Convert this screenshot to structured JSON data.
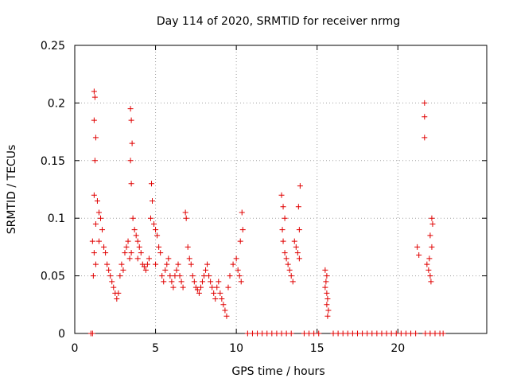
{
  "chart_data": {
    "type": "scatter",
    "title": "Day 114 of 2020, SRMTID for receiver nrmg",
    "xlabel": "GPS time / hours",
    "ylabel": "SRMTID / TECUs",
    "xlim": [
      0,
      25.5
    ],
    "ylim": [
      0,
      0.25
    ],
    "x_ticks": [
      0,
      5,
      10,
      15,
      20
    ],
    "y_ticks": [
      0,
      0.05,
      0.1,
      0.15,
      0.2,
      0.25
    ],
    "y_tick_labels": [
      "0",
      "0.05",
      "0.1",
      "0.15",
      "0.2",
      "0.25"
    ],
    "grid": true,
    "marker": "+",
    "series": [
      {
        "name": "SRMTID",
        "color": "#e00000",
        "points": [
          [
            1.2,
            0.21
          ],
          [
            1.25,
            0.205
          ],
          [
            1.2,
            0.185
          ],
          [
            1.3,
            0.17
          ],
          [
            1.25,
            0.15
          ],
          [
            1.2,
            0.12
          ],
          [
            1.3,
            0.095
          ],
          [
            1.1,
            0.08
          ],
          [
            1.2,
            0.07
          ],
          [
            1.3,
            0.06
          ],
          [
            1.15,
            0.05
          ],
          [
            1.4,
            0.115
          ],
          [
            1.5,
            0.105
          ],
          [
            1.6,
            0.1
          ],
          [
            1.7,
            0.09
          ],
          [
            1.5,
            0.08
          ],
          [
            1.8,
            0.075
          ],
          [
            1.9,
            0.07
          ],
          [
            2.0,
            0.06
          ],
          [
            2.1,
            0.055
          ],
          [
            2.2,
            0.05
          ],
          [
            2.3,
            0.045
          ],
          [
            2.4,
            0.04
          ],
          [
            2.5,
            0.035
          ],
          [
            2.6,
            0.03
          ],
          [
            2.7,
            0.035
          ],
          [
            2.8,
            0.05
          ],
          [
            2.9,
            0.06
          ],
          [
            3.0,
            0.055
          ],
          [
            3.1,
            0.07
          ],
          [
            3.2,
            0.075
          ],
          [
            3.3,
            0.08
          ],
          [
            3.4,
            0.065
          ],
          [
            3.5,
            0.07
          ],
          [
            3.45,
            0.195
          ],
          [
            3.5,
            0.185
          ],
          [
            3.55,
            0.165
          ],
          [
            3.45,
            0.15
          ],
          [
            3.5,
            0.13
          ],
          [
            3.6,
            0.1
          ],
          [
            3.7,
            0.09
          ],
          [
            3.8,
            0.085
          ],
          [
            3.9,
            0.08
          ],
          [
            4.0,
            0.075
          ],
          [
            4.1,
            0.07
          ],
          [
            3.9,
            0.065
          ],
          [
            4.2,
            0.06
          ],
          [
            4.3,
            0.058
          ],
          [
            4.4,
            0.055
          ],
          [
            4.5,
            0.06
          ],
          [
            4.6,
            0.065
          ],
          [
            4.75,
            0.13
          ],
          [
            4.8,
            0.115
          ],
          [
            4.7,
            0.1
          ],
          [
            4.9,
            0.095
          ],
          [
            5.0,
            0.09
          ],
          [
            5.1,
            0.085
          ],
          [
            5.2,
            0.075
          ],
          [
            5.3,
            0.07
          ],
          [
            5.0,
            0.06
          ],
          [
            5.4,
            0.05
          ],
          [
            5.5,
            0.045
          ],
          [
            5.6,
            0.055
          ],
          [
            5.7,
            0.06
          ],
          [
            5.8,
            0.065
          ],
          [
            5.9,
            0.05
          ],
          [
            6.0,
            0.045
          ],
          [
            6.1,
            0.04
          ],
          [
            6.2,
            0.05
          ],
          [
            6.3,
            0.055
          ],
          [
            6.4,
            0.06
          ],
          [
            6.5,
            0.05
          ],
          [
            6.6,
            0.045
          ],
          [
            6.7,
            0.04
          ],
          [
            6.85,
            0.105
          ],
          [
            6.9,
            0.1
          ],
          [
            7.0,
            0.075
          ],
          [
            7.1,
            0.065
          ],
          [
            7.2,
            0.06
          ],
          [
            7.3,
            0.05
          ],
          [
            7.4,
            0.045
          ],
          [
            7.5,
            0.04
          ],
          [
            7.6,
            0.038
          ],
          [
            7.7,
            0.035
          ],
          [
            7.8,
            0.04
          ],
          [
            7.9,
            0.045
          ],
          [
            8.0,
            0.05
          ],
          [
            8.1,
            0.055
          ],
          [
            8.2,
            0.06
          ],
          [
            8.3,
            0.05
          ],
          [
            8.4,
            0.045
          ],
          [
            8.5,
            0.04
          ],
          [
            8.6,
            0.035
          ],
          [
            8.7,
            0.03
          ],
          [
            8.8,
            0.04
          ],
          [
            8.9,
            0.045
          ],
          [
            9.0,
            0.035
          ],
          [
            9.1,
            0.03
          ],
          [
            9.2,
            0.025
          ],
          [
            9.3,
            0.02
          ],
          [
            9.4,
            0.015
          ],
          [
            9.5,
            0.04
          ],
          [
            9.6,
            0.05
          ],
          [
            9.8,
            0.06
          ],
          [
            10.0,
            0.065
          ],
          [
            10.1,
            0.055
          ],
          [
            10.2,
            0.05
          ],
          [
            10.3,
            0.045
          ],
          [
            10.35,
            0.105
          ],
          [
            10.4,
            0.09
          ],
          [
            10.25,
            0.08
          ],
          [
            12.8,
            0.12
          ],
          [
            12.9,
            0.11
          ],
          [
            13.0,
            0.1
          ],
          [
            12.85,
            0.09
          ],
          [
            12.9,
            0.08
          ],
          [
            13.0,
            0.07
          ],
          [
            13.1,
            0.065
          ],
          [
            13.2,
            0.06
          ],
          [
            13.3,
            0.055
          ],
          [
            13.4,
            0.05
          ],
          [
            13.5,
            0.045
          ],
          [
            13.6,
            0.08
          ],
          [
            13.7,
            0.075
          ],
          [
            13.8,
            0.07
          ],
          [
            13.9,
            0.065
          ],
          [
            13.95,
            0.128
          ],
          [
            13.85,
            0.11
          ],
          [
            13.9,
            0.09
          ],
          [
            15.5,
            0.055
          ],
          [
            15.6,
            0.05
          ],
          [
            15.55,
            0.045
          ],
          [
            15.5,
            0.04
          ],
          [
            15.6,
            0.035
          ],
          [
            15.65,
            0.03
          ],
          [
            15.6,
            0.025
          ],
          [
            15.7,
            0.02
          ],
          [
            15.65,
            0.015
          ],
          [
            21.2,
            0.075
          ],
          [
            21.3,
            0.068
          ],
          [
            21.65,
            0.2
          ],
          [
            21.65,
            0.188
          ],
          [
            21.65,
            0.17
          ],
          [
            21.8,
            0.06
          ],
          [
            21.9,
            0.055
          ],
          [
            22.0,
            0.05
          ],
          [
            22.05,
            0.045
          ],
          [
            22.1,
            0.1
          ],
          [
            22.15,
            0.095
          ],
          [
            22.0,
            0.085
          ],
          [
            22.1,
            0.075
          ],
          [
            21.95,
            0.065
          ],
          [
            1.0,
            0.0
          ],
          [
            1.1,
            0.0
          ],
          [
            10.7,
            0.0
          ],
          [
            11.0,
            0.0
          ],
          [
            11.3,
            0.0
          ],
          [
            11.6,
            0.0
          ],
          [
            11.9,
            0.0
          ],
          [
            12.2,
            0.0
          ],
          [
            12.5,
            0.0
          ],
          [
            12.8,
            0.0
          ],
          [
            13.1,
            0.0
          ],
          [
            13.4,
            0.0
          ],
          [
            14.2,
            0.0
          ],
          [
            14.5,
            0.0
          ],
          [
            14.8,
            0.0
          ],
          [
            15.1,
            0.0
          ],
          [
            16.0,
            0.0
          ],
          [
            16.3,
            0.0
          ],
          [
            16.6,
            0.0
          ],
          [
            16.9,
            0.0
          ],
          [
            17.2,
            0.0
          ],
          [
            17.5,
            0.0
          ],
          [
            17.8,
            0.0
          ],
          [
            18.1,
            0.0
          ],
          [
            18.4,
            0.0
          ],
          [
            18.7,
            0.0
          ],
          [
            19.0,
            0.0
          ],
          [
            19.3,
            0.0
          ],
          [
            19.6,
            0.0
          ],
          [
            19.9,
            0.0
          ],
          [
            20.2,
            0.0
          ],
          [
            20.5,
            0.0
          ],
          [
            20.8,
            0.0
          ],
          [
            21.1,
            0.0
          ],
          [
            21.7,
            0.0
          ],
          [
            22.0,
            0.0
          ],
          [
            22.3,
            0.0
          ],
          [
            22.6,
            0.0
          ],
          [
            22.8,
            0.0
          ]
        ]
      }
    ]
  }
}
